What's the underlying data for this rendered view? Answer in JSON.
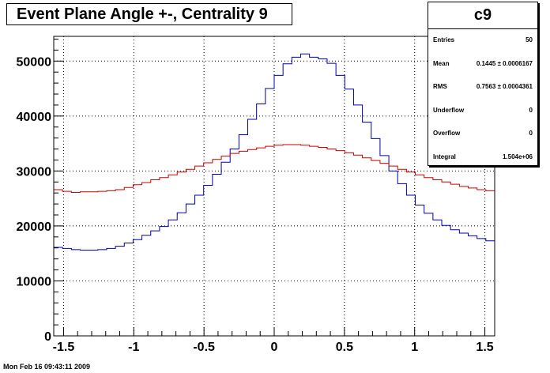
{
  "chart_data": {
    "type": "line",
    "title": "Event Plane Angle +-, Centrality 9",
    "xlim": [
      -1.57,
      1.57
    ],
    "ylim": [
      0,
      54500
    ],
    "x_ticks": [
      {
        "value": -1.5,
        "label": "-1.5"
      },
      {
        "value": -1,
        "label": "-1"
      },
      {
        "value": -0.5,
        "label": "-0.5"
      },
      {
        "value": 0,
        "label": "0"
      },
      {
        "value": 0.5,
        "label": "0.5"
      },
      {
        "value": 1,
        "label": "1"
      },
      {
        "value": 1.5,
        "label": "1.5"
      }
    ],
    "y_ticks": [
      {
        "value": 0,
        "label": "0"
      },
      {
        "value": 10000,
        "label": "10000"
      },
      {
        "value": 20000,
        "label": "20000"
      },
      {
        "value": 30000,
        "label": "30000"
      },
      {
        "value": 40000,
        "label": "40000"
      },
      {
        "value": 50000,
        "label": "50000"
      }
    ],
    "grid": true,
    "bins": 50,
    "series": [
      {
        "color": "#0000aa",
        "values": [
          16100,
          15900,
          15700,
          15600,
          15600,
          15700,
          15900,
          16300,
          16900,
          17500,
          18300,
          19100,
          19900,
          21100,
          22400,
          24000,
          25600,
          27400,
          29400,
          31600,
          34000,
          36600,
          39400,
          42200,
          45000,
          47400,
          49500,
          50700,
          51300,
          50700,
          50400,
          49600,
          47400,
          44900,
          42000,
          38900,
          35900,
          32800,
          30000,
          27700,
          25600,
          23800,
          22300,
          21100,
          20100,
          19300,
          18700,
          18200,
          17700,
          17300
        ]
      },
      {
        "color": "#cc0000",
        "values": [
          26600,
          26300,
          26100,
          26200,
          26200,
          26300,
          26400,
          26600,
          27000,
          27500,
          27900,
          28400,
          28800,
          29300,
          29800,
          30300,
          30900,
          31500,
          32100,
          32700,
          33200,
          33600,
          33900,
          34200,
          34500,
          34700,
          34800,
          34800,
          34700,
          34500,
          34300,
          34000,
          33700,
          33300,
          32900,
          32400,
          31900,
          31400,
          30900,
          30300,
          29800,
          29300,
          28800,
          28400,
          28000,
          27600,
          27200,
          26900,
          26600,
          26400
        ]
      }
    ]
  },
  "stats": {
    "name": "c9",
    "rows": [
      {
        "label": "Entries",
        "value": "50"
      },
      {
        "label": "Mean",
        "value": "0.1445 ± 0.0006167"
      },
      {
        "label": "RMS",
        "value": "0.7563 ± 0.0004361"
      },
      {
        "label": "Underflow",
        "value": "0"
      },
      {
        "label": "Overflow",
        "value": "0"
      },
      {
        "label": "Integral",
        "value": "1.504e+06"
      }
    ]
  },
  "footer": {
    "date": "Mon Feb 16 09:43:11 2009"
  }
}
